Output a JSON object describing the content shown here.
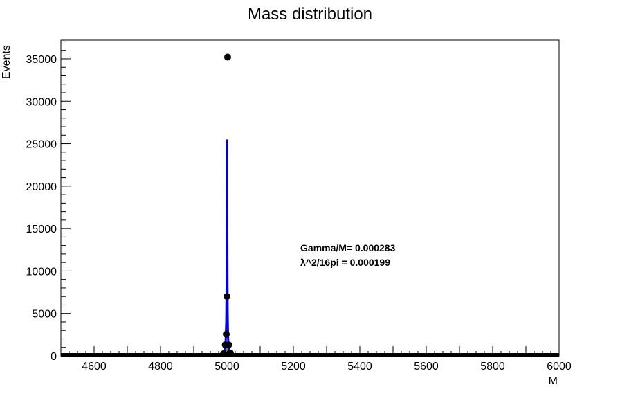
{
  "chart_data": {
    "type": "scatter",
    "title": "Mass distribution",
    "xlabel": "M",
    "ylabel": "Events",
    "xlim": [
      4500,
      6000
    ],
    "ylim": [
      0,
      37200
    ],
    "x_ticks": [
      4600,
      4800,
      5000,
      5200,
      5400,
      5600,
      5800,
      6000
    ],
    "y_ticks": [
      0,
      5000,
      10000,
      15000,
      20000,
      25000,
      30000,
      35000
    ],
    "grid": false,
    "annotations": [
      "Gamma/M= 0.000283",
      "λ^2/16pi = 0.000199"
    ],
    "series": [
      {
        "kind": "points",
        "color": "#000000",
        "x": [
          4990,
          4995,
          4998,
          5000,
          5002,
          5005,
          5010
        ],
        "y": [
          250,
          1300,
          2550,
          7000,
          35200,
          1300,
          350
        ]
      },
      {
        "kind": "fit-curve",
        "color": "#0000dd",
        "x": [
          4992,
          4996,
          4998,
          4999,
          4999.5,
          5000,
          5000.5,
          5001,
          5001.5,
          5002,
          5003,
          5004,
          5006,
          5010
        ],
        "y": [
          500,
          1500,
          4000,
          8000,
          14500,
          18000,
          25500,
          14300,
          9000,
          5000,
          3000,
          1500,
          700,
          300
        ]
      }
    ]
  }
}
